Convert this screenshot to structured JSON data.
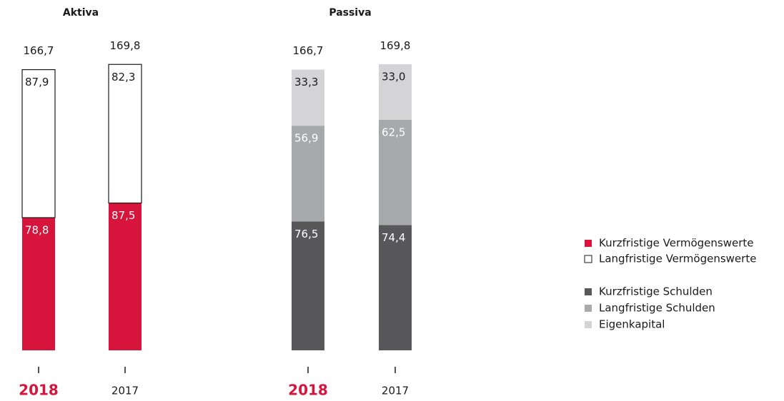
{
  "chart_data": [
    {
      "type": "bar",
      "stacked": true,
      "title": "Aktiva",
      "categories": [
        "2018",
        "2017"
      ],
      "totals": [
        166.7,
        169.8
      ],
      "total_labels": [
        "166,7",
        "169,8"
      ],
      "series": [
        {
          "name": "Kurzfristige Vermögenswerte",
          "color": "#d7143c",
          "values": [
            78.8,
            87.5
          ],
          "value_labels": [
            "78,8",
            "87,5"
          ]
        },
        {
          "name": "Langfristige Vermögenswerte",
          "color": "#ffffff",
          "edgecolor": "#1a1a1a",
          "values": [
            87.9,
            82.3
          ],
          "value_labels": [
            "87,9",
            "82,3"
          ]
        }
      ]
    },
    {
      "type": "bar",
      "stacked": true,
      "title": "Passiva",
      "categories": [
        "2018",
        "2017"
      ],
      "totals": [
        166.7,
        169.8
      ],
      "total_labels": [
        "166,7",
        "169,8"
      ],
      "series": [
        {
          "name": "Kurzfristige Schulden",
          "color": "#58585a",
          "values": [
            76.5,
            74.4
          ],
          "value_labels": [
            "76,5",
            "74,4"
          ]
        },
        {
          "name": "Langfristige Schulden",
          "color": "#a8a9ad",
          "values": [
            56.9,
            62.5
          ],
          "value_labels": [
            "56,9",
            "62,5"
          ]
        },
        {
          "name": "Eigenkapital",
          "color": "#d4d4d6",
          "values": [
            33.3,
            33.0
          ],
          "value_labels": [
            "33,3",
            "33,0"
          ]
        }
      ]
    }
  ]
}
